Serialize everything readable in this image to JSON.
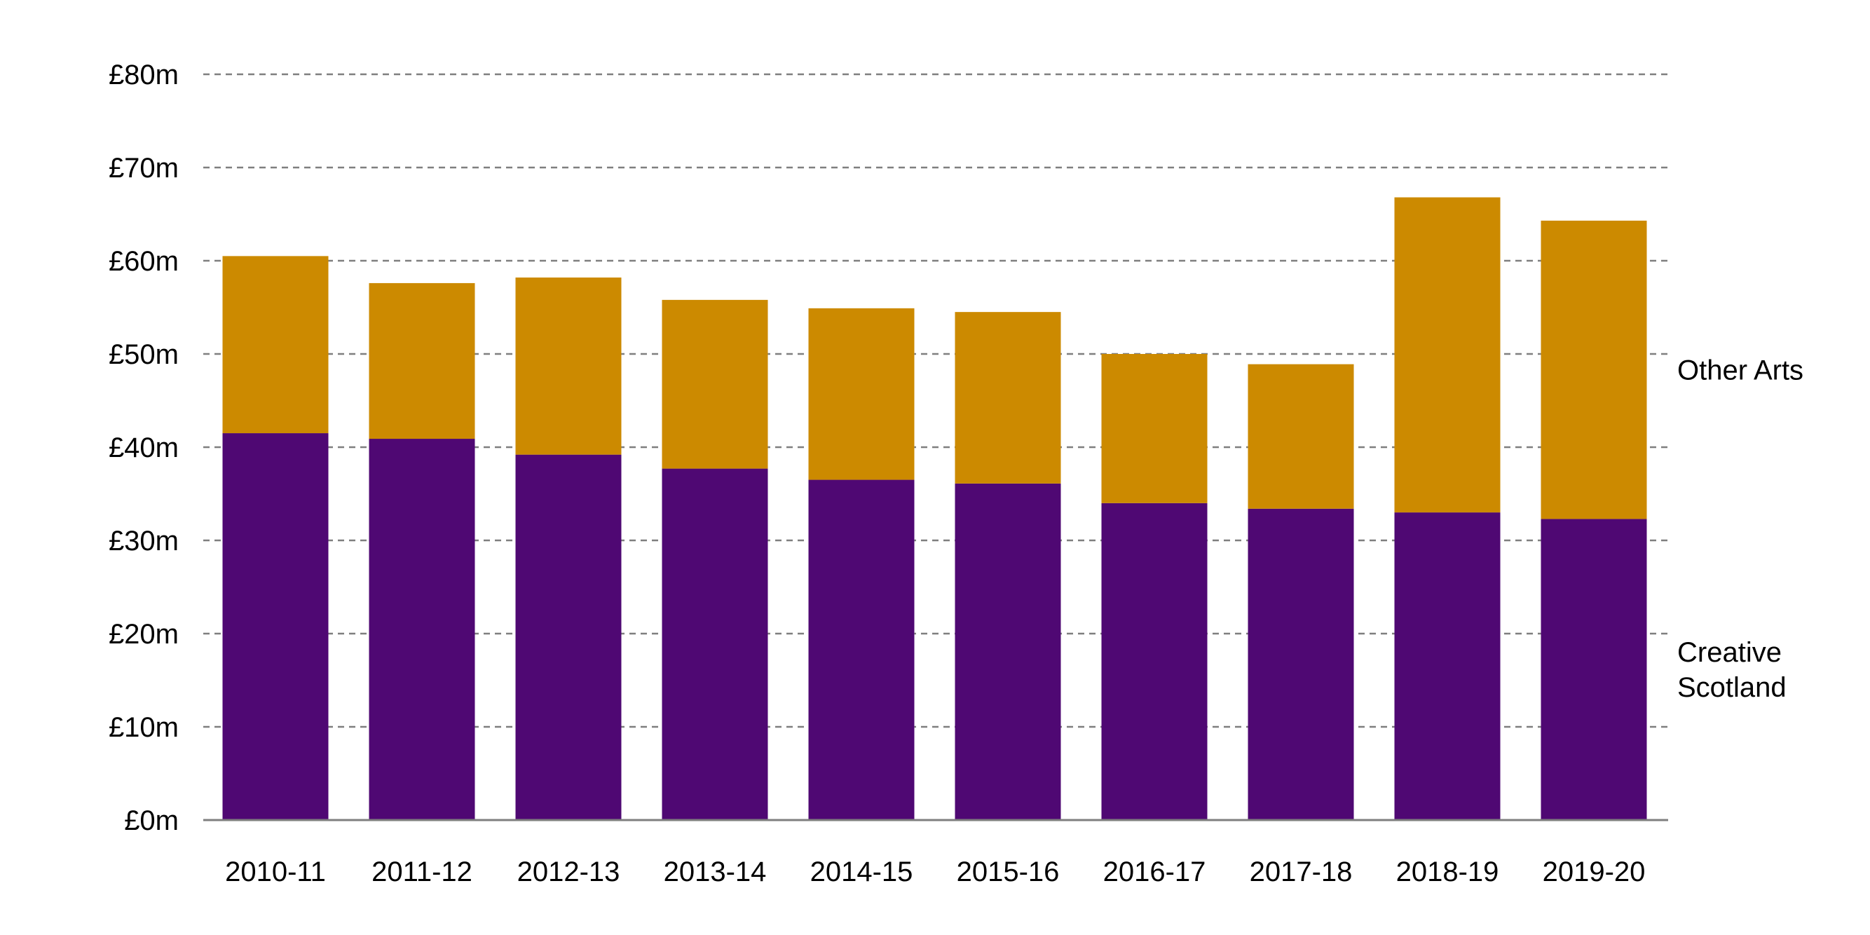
{
  "chart_data": {
    "type": "bar",
    "stacked": true,
    "categories": [
      "2010-11",
      "2011-12",
      "2012-13",
      "2013-14",
      "2014-15",
      "2015-16",
      "2016-17",
      "2017-18",
      "2018-19",
      "2019-20"
    ],
    "series": [
      {
        "name": "Creative Scotland",
        "label_lines": [
          "Creative",
          "Scotland"
        ],
        "color": "#4f0873",
        "values": [
          41.5,
          40.9,
          39.2,
          37.7,
          36.5,
          36.1,
          34.0,
          33.4,
          33.0,
          32.3
        ]
      },
      {
        "name": "Other Arts",
        "label_lines": [
          "Other Arts"
        ],
        "color": "#cc8a00",
        "values": [
          19.0,
          16.7,
          19.0,
          18.1,
          18.4,
          18.4,
          16.0,
          15.5,
          33.8,
          32.0
        ]
      }
    ],
    "y_ticks": [
      {
        "value": 0,
        "label": "£0m"
      },
      {
        "value": 10,
        "label": "£10m"
      },
      {
        "value": 20,
        "label": "£20m"
      },
      {
        "value": 30,
        "label": "£30m"
      },
      {
        "value": 40,
        "label": "£40m"
      },
      {
        "value": 50,
        "label": "£50m"
      },
      {
        "value": 60,
        "label": "£60m"
      },
      {
        "value": 70,
        "label": "£70m"
      },
      {
        "value": 80,
        "label": "£80m"
      }
    ],
    "ylim": [
      0,
      80
    ],
    "grid": true,
    "legend": "right",
    "title": "",
    "xlabel": "",
    "ylabel": ""
  }
}
